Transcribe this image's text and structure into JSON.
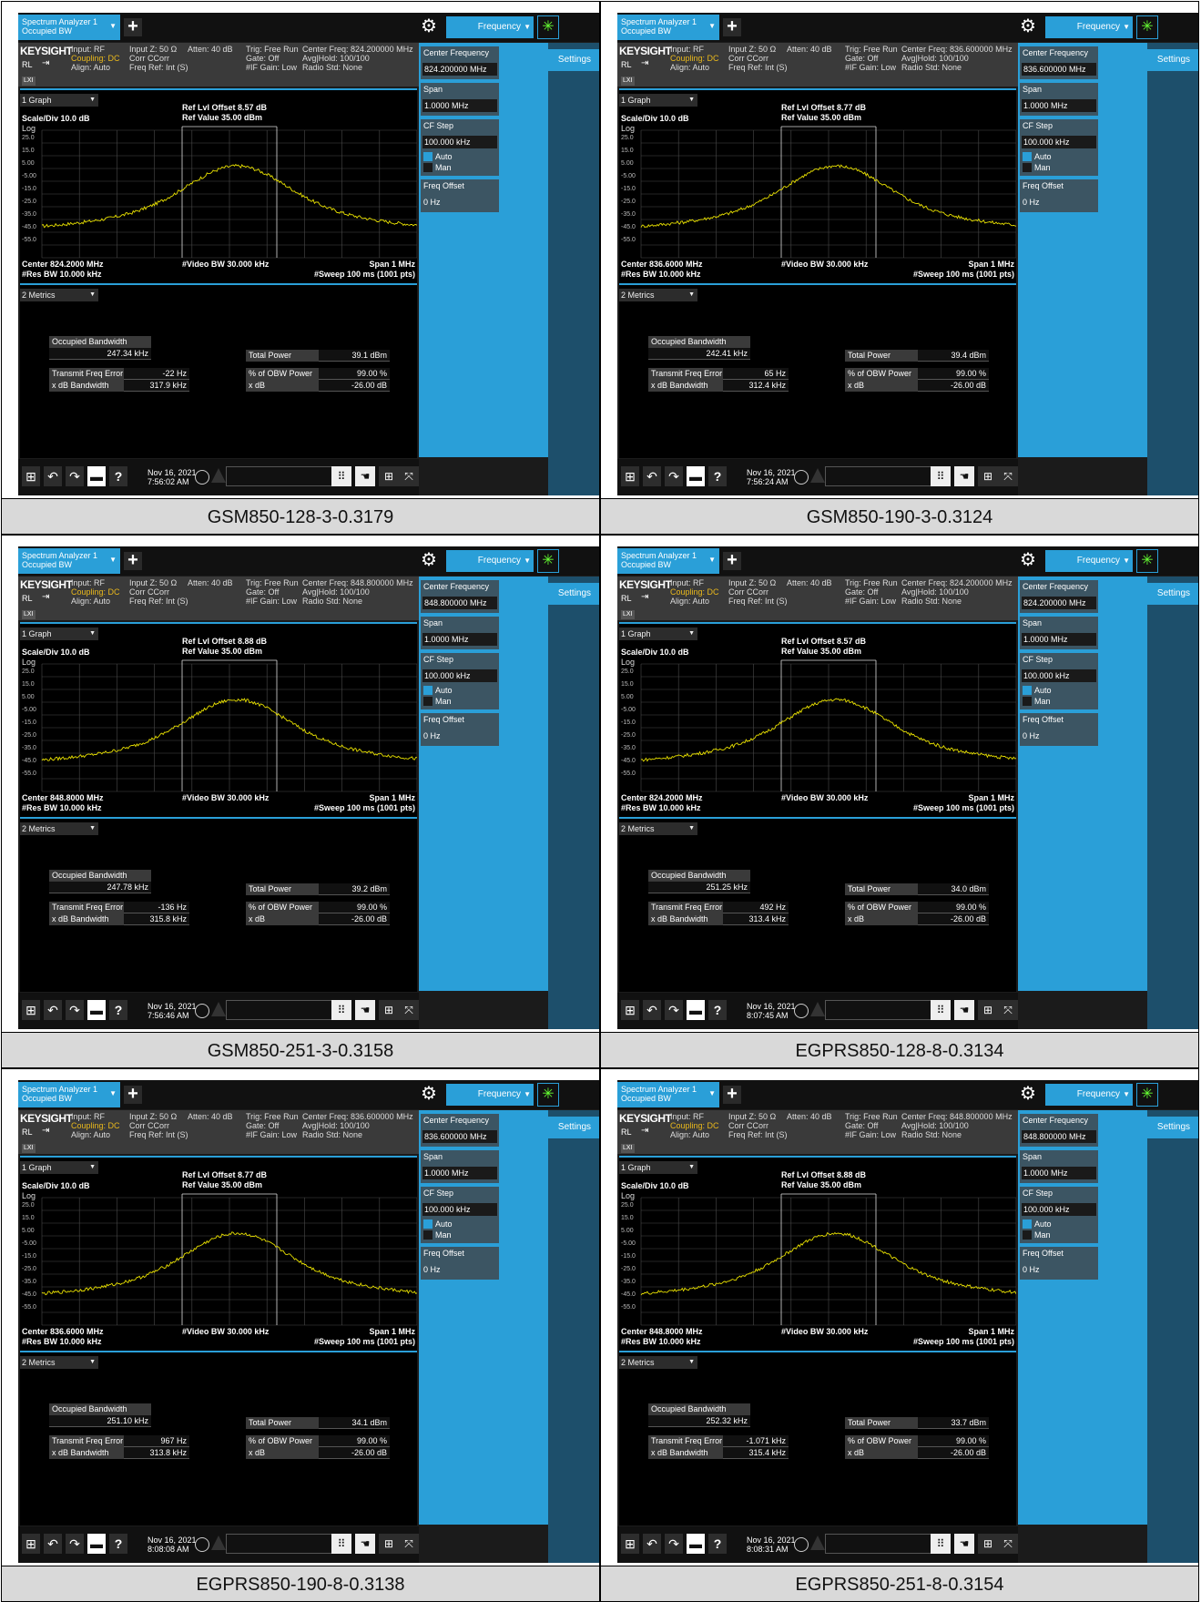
{
  "common": {
    "app_tab_line1": "Spectrum Analyzer 1",
    "app_tab_line2": "Occupied BW",
    "add_tab": "+",
    "menu": "Frequency",
    "settings_tab": "Settings",
    "brand": "KEYSIGHT",
    "rl": "RL",
    "info": {
      "input": "Input: RF",
      "coupling": "Coupling: DC",
      "align": "Align: Auto",
      "input_z": "Input Z: 50 Ω",
      "corr": "Corr CCorr",
      "freq_ref": "Freq Ref: Int (S)",
      "atten": "Atten: 40 dB",
      "trig": "Trig: Free Run",
      "gate": "Gate: Off",
      "if_gain": "#IF Gain: Low",
      "avg": "Avg|Hold: 100/100",
      "radio": "Radio Std: None",
      "lxi": "LXI"
    },
    "graph_select": "1 Graph",
    "scale": "Scale/Div 10.0 dB",
    "log": "Log",
    "ref_value": "Ref Value 35.00 dBm",
    "y_ticks": [
      "25.0",
      "15.0",
      "5.00",
      "-5.00",
      "-15.0",
      "-25.0",
      "-35.0",
      "-45.0",
      "-55.0"
    ],
    "video_bw": "#Video BW 30.000 kHz",
    "span_label": "Span 1 MHz",
    "res_bw": "#Res BW 10.000 kHz",
    "sweep": "#Sweep 100 ms (1001 pts)",
    "metrics_select": "2 Metrics",
    "labels": {
      "obw": "Occupied Bandwidth",
      "total_power": "Total Power",
      "tfe": "Transmit Freq Error",
      "pct_obw": "% of OBW Power",
      "xdb_bw": "x dB Bandwidth",
      "xdb": "x dB"
    },
    "values": {
      "pct_obw": "99.00 %",
      "xdb": "-26.00 dB"
    },
    "date": "Nov 16, 2021",
    "panel": {
      "center_freq": "Center Frequency",
      "span": "Span",
      "span_val": "1.0000 MHz",
      "cf_step": "CF Step",
      "cf_step_val": "100.000 kHz",
      "auto": "Auto",
      "man": "Man",
      "freq_offset": "Freq Offset",
      "freq_offset_val": "0 Hz"
    }
  },
  "panels": [
    {
      "caption": "GSM850-128-3-0.3179",
      "center_freq_header": "Center Freq: 824.200000 MHz",
      "center_freq_value": "824.200000 MHz",
      "ref_lvl": "Ref Lvl Offset 8.57 dB",
      "center_label": "Center 824.2000 MHz",
      "obw": "247.34 kHz",
      "total_power": "39.1 dBm",
      "tfe": "-22 Hz",
      "xdb_bw": "317.9 kHz",
      "time": "7:56:02 AM"
    },
    {
      "caption": "GSM850-190-3-0.3124",
      "center_freq_header": "Center Freq: 836.600000 MHz",
      "center_freq_value": "836.600000 MHz",
      "ref_lvl": "Ref Lvl Offset 8.77 dB",
      "center_label": "Center 836.6000 MHz",
      "obw": "242.41 kHz",
      "total_power": "39.4 dBm",
      "tfe": "65 Hz",
      "xdb_bw": "312.4 kHz",
      "time": "7:56:24 AM"
    },
    {
      "caption": "GSM850-251-3-0.3158",
      "center_freq_header": "Center Freq: 848.800000 MHz",
      "center_freq_value": "848.800000 MHz",
      "ref_lvl": "Ref Lvl Offset 8.88 dB",
      "center_label": "Center 848.8000 MHz",
      "obw": "247.78 kHz",
      "total_power": "39.2 dBm",
      "tfe": "-136 Hz",
      "xdb_bw": "315.8 kHz",
      "time": "7:56:46 AM"
    },
    {
      "caption": "EGPRS850-128-8-0.3134",
      "center_freq_header": "Center Freq: 824.200000 MHz",
      "center_freq_value": "824.200000 MHz",
      "ref_lvl": "Ref Lvl Offset 8.57 dB",
      "center_label": "Center 824.2000 MHz",
      "obw": "251.25 kHz",
      "total_power": "34.0 dBm",
      "tfe": "492 Hz",
      "xdb_bw": "313.4 kHz",
      "time": "8:07:45 AM"
    },
    {
      "caption": "EGPRS850-190-8-0.3138",
      "center_freq_header": "Center Freq: 836.600000 MHz",
      "center_freq_value": "836.600000 MHz",
      "ref_lvl": "Ref Lvl Offset 8.77 dB",
      "center_label": "Center 836.6000 MHz",
      "obw": "251.10 kHz",
      "total_power": "34.1 dBm",
      "tfe": "967 Hz",
      "xdb_bw": "313.8 kHz",
      "time": "8:08:08 AM"
    },
    {
      "caption": "EGPRS850-251-8-0.3154",
      "center_freq_header": "Center Freq: 848.800000 MHz",
      "center_freq_value": "848.800000 MHz",
      "ref_lvl": "Ref Lvl Offset 8.88 dB",
      "center_label": "Center 848.8000 MHz",
      "obw": "252.32 kHz",
      "total_power": "33.7 dBm",
      "tfe": "-1.071 kHz",
      "xdb_bw": "315.4 kHz",
      "time": "8:08:31 AM"
    }
  ],
  "colors": {
    "accent": "#2a9fd8",
    "trace": "#e8e000",
    "coupling": "#e9b81c"
  }
}
